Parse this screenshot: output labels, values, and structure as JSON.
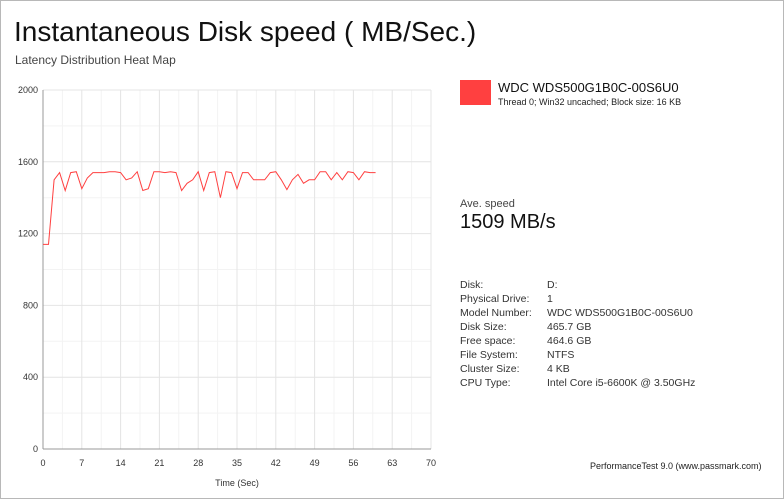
{
  "header": {
    "title": "Instantaneous Disk speed ( MB/Sec.)",
    "subtitle": "Latency Distribution Heat Map"
  },
  "legend": {
    "color": "#ff4040",
    "name": "WDC WDS500G1B0C-00S6U0",
    "description": "Thread 0; Win32 uncached; Block size: 16 KB"
  },
  "speed": {
    "label": "Ave. speed",
    "value": "1509 MB/s"
  },
  "info": [
    {
      "key": "Disk:",
      "value": "D:"
    },
    {
      "key": "Physical Drive:",
      "value": "1"
    },
    {
      "key": "Model Number:",
      "value": "WDC WDS500G1B0C-00S6U0"
    },
    {
      "key": "Disk Size:",
      "value": "465.7 GB"
    },
    {
      "key": "Free space:",
      "value": "464.6 GB"
    },
    {
      "key": "File System:",
      "value": "NTFS"
    },
    {
      "key": "Cluster Size:",
      "value": "4 KB"
    },
    {
      "key": "CPU Type:",
      "value": "Intel Core i5-6600K @ 3.50GHz"
    }
  ],
  "footer": "PerformanceTest 9.0 (www.passmark.com)",
  "chart_data": {
    "type": "line",
    "xlabel": "Time (Sec)",
    "ylabel": "",
    "xlim": [
      0,
      70
    ],
    "ylim": [
      0,
      2000
    ],
    "xticks": [
      0,
      7,
      14,
      21,
      28,
      35,
      42,
      49,
      56,
      63,
      70
    ],
    "yticks": [
      0,
      400,
      800,
      1200,
      1600,
      2000
    ],
    "grid": true,
    "series": [
      {
        "color": "#ff4040",
        "x": [
          0,
          1,
          2,
          3,
          4,
          5,
          6,
          7,
          8,
          9,
          10,
          11,
          12,
          13,
          14,
          15,
          16,
          17,
          18,
          19,
          20,
          21,
          22,
          23,
          24,
          25,
          26,
          27,
          28,
          29,
          30,
          31,
          32,
          33,
          34,
          35,
          36,
          37,
          38,
          39,
          40,
          41,
          42,
          43,
          44,
          45,
          46,
          47,
          48,
          49,
          50,
          51,
          52,
          53,
          54,
          55,
          56,
          57,
          58,
          59,
          60
        ],
        "y": [
          1140,
          1140,
          1500,
          1540,
          1440,
          1540,
          1545,
          1450,
          1510,
          1540,
          1540,
          1540,
          1545,
          1545,
          1540,
          1500,
          1510,
          1545,
          1440,
          1450,
          1545,
          1545,
          1540,
          1545,
          1540,
          1440,
          1480,
          1500,
          1545,
          1440,
          1540,
          1545,
          1400,
          1545,
          1540,
          1450,
          1540,
          1540,
          1500,
          1500,
          1500,
          1540,
          1545,
          1500,
          1445,
          1500,
          1530,
          1480,
          1500,
          1500,
          1545,
          1545,
          1500,
          1540,
          1500,
          1545,
          1540,
          1500,
          1545,
          1540,
          1540
        ]
      }
    ]
  }
}
